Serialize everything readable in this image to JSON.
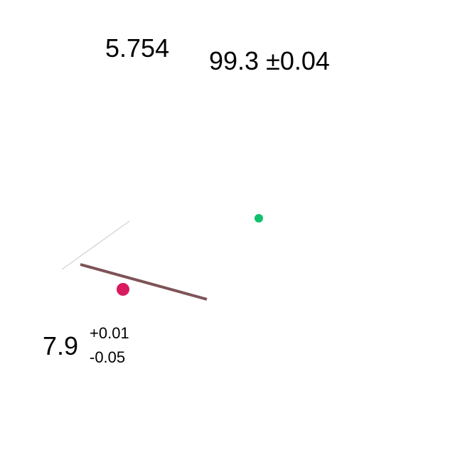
{
  "labels": {
    "first_value": "5.754",
    "second_value": "99.3 ±0.04",
    "third": {
      "value": "7.9",
      "err_plus": "+0.01",
      "err_minus": "-0.05"
    }
  },
  "colors": {
    "background": "#ffffff",
    "text": "#000000",
    "thin_line": "#c8c8c8",
    "thick_line": "#7d5358",
    "large_dot": "#d81b5e",
    "small_dot": "#11c06b"
  }
}
